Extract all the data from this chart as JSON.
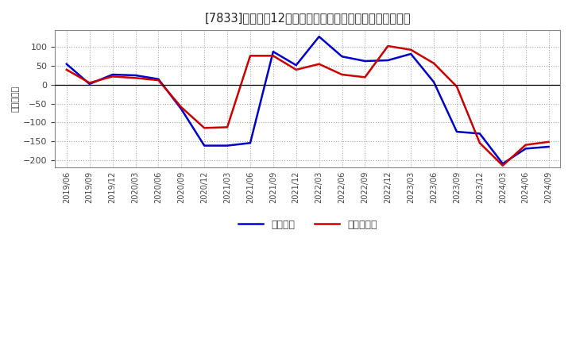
{
  "title": "[7833]　利益の12か月移動合計の対前年同期増減額の推移",
  "ylabel": "（百万円）",
  "background_color": "#ffffff",
  "plot_bg_color": "#ffffff",
  "grid_color": "#aaaaaa",
  "ylim": [
    -220,
    145
  ],
  "yticks": [
    -200,
    -150,
    -100,
    -50,
    0,
    50,
    100
  ],
  "x_labels": [
    "2019/06",
    "2019/09",
    "2019/12",
    "2020/03",
    "2020/06",
    "2020/09",
    "2020/12",
    "2021/03",
    "2021/06",
    "2021/09",
    "2021/12",
    "2022/03",
    "2022/06",
    "2022/09",
    "2022/12",
    "2023/03",
    "2023/06",
    "2023/09",
    "2023/12",
    "2024/03",
    "2024/06",
    "2024/09"
  ],
  "keijo_rieki": [
    55,
    2,
    27,
    25,
    15,
    -65,
    -162,
    -162,
    -155,
    88,
    52,
    128,
    75,
    63,
    65,
    82,
    7,
    -125,
    -130,
    -210,
    -170,
    -165
  ],
  "toukirei_rieki": [
    40,
    5,
    22,
    18,
    12,
    -60,
    -115,
    -113,
    77,
    77,
    40,
    55,
    27,
    20,
    103,
    93,
    57,
    -5,
    -155,
    -215,
    -160,
    -152
  ],
  "line_color_keijo": "#0000cc",
  "line_color_toukirei": "#cc0000",
  "line_width": 1.8,
  "legend_keijo": "経常利益",
  "legend_toukirei": "当期純利益",
  "figsize": [
    7.2,
    4.4
  ],
  "dpi": 100
}
